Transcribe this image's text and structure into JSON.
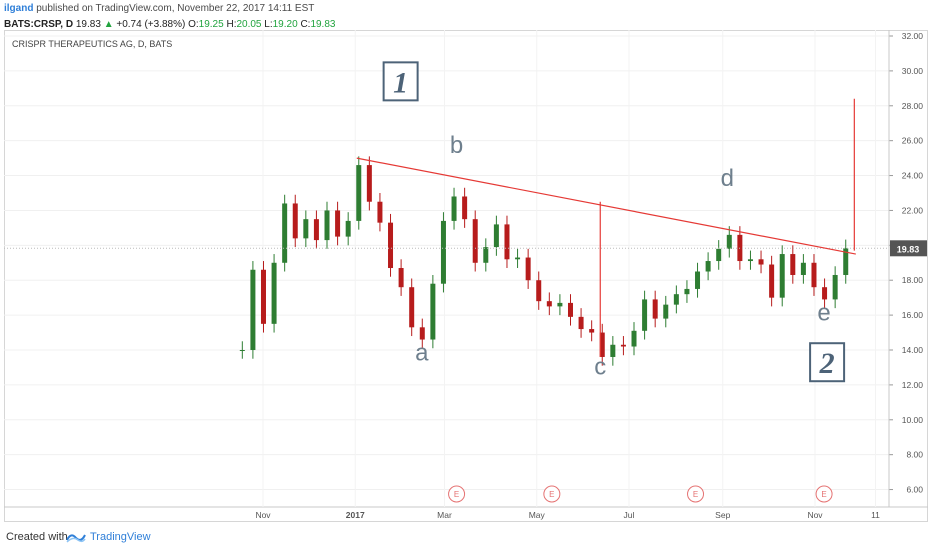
{
  "header": {
    "author": "ilgand",
    "published": "published on TradingView.com, November 22, 2017 14:11 EST",
    "symbol": "BATS:CRSP, D",
    "last": "19.83",
    "change": "+0.74 (+3.88%)",
    "open_label": "O:",
    "open": "19.25",
    "high_label": "H:",
    "high": "20.05",
    "low_label": "L:",
    "low": "19.20",
    "close_label": "C:",
    "close": "19.83"
  },
  "footer": {
    "created": "Created with",
    "brand": "TradingView"
  },
  "colors": {
    "up": "#2e7d32",
    "down": "#b71c1c",
    "trendline": "#e53935",
    "label": "#6e7f8d",
    "box": "#4d6378",
    "price_tag": "#555555",
    "earnings": "#e57373"
  },
  "chart_data": {
    "type": "candlestick",
    "title": "CRISPR THERAPEUTICS AG, D, BATS",
    "ylim": [
      5,
      32
    ],
    "y_ticks": [
      "32.00",
      "30.00",
      "28.00",
      "26.00",
      "24.00",
      "22.00",
      "20.00",
      "18.00",
      "16.00",
      "14.00",
      "12.00",
      "10.00",
      "8.00",
      "6.00"
    ],
    "x_ticks": [
      "Nov",
      "2017",
      "Mar",
      "May",
      "Jul",
      "Sep",
      "Nov",
      "11"
    ],
    "last_price": "19.83",
    "series": [
      {
        "period": "2016-10-17",
        "close": 14.0
      },
      {
        "period": "2016-10-24",
        "close": 18.6
      },
      {
        "period": "2016-10-31",
        "close": 15.5
      },
      {
        "period": "2016-11-07",
        "close": 19.0
      },
      {
        "period": "2016-11-14",
        "close": 22.4
      },
      {
        "period": "2016-11-21",
        "close": 20.4
      },
      {
        "period": "2016-11-28",
        "close": 21.5
      },
      {
        "period": "2016-12-05",
        "close": 20.3
      },
      {
        "period": "2016-12-12",
        "close": 22.0
      },
      {
        "period": "2016-12-19",
        "close": 20.5
      },
      {
        "period": "2016-12-26",
        "close": 21.4
      },
      {
        "period": "2017-01-02",
        "close": 24.6
      },
      {
        "period": "2017-01-09",
        "close": 22.5
      },
      {
        "period": "2017-01-16",
        "close": 21.3
      },
      {
        "period": "2017-01-23",
        "close": 18.7
      },
      {
        "period": "2017-01-30",
        "close": 17.6
      },
      {
        "period": "2017-02-06",
        "close": 15.3
      },
      {
        "period": "2017-02-13",
        "close": 14.6
      },
      {
        "period": "2017-02-20",
        "close": 17.8
      },
      {
        "period": "2017-02-27",
        "close": 21.4
      },
      {
        "period": "2017-03-06",
        "close": 22.8
      },
      {
        "period": "2017-03-13",
        "close": 21.5
      },
      {
        "period": "2017-03-20",
        "close": 19.0
      },
      {
        "period": "2017-03-27",
        "close": 19.9
      },
      {
        "period": "2017-04-03",
        "close": 21.2
      },
      {
        "period": "2017-04-10",
        "close": 19.2
      },
      {
        "period": "2017-04-17",
        "close": 19.3
      },
      {
        "period": "2017-04-24",
        "close": 18.0
      },
      {
        "period": "2017-05-01",
        "close": 16.8
      },
      {
        "period": "2017-05-08",
        "close": 16.5
      },
      {
        "period": "2017-05-15",
        "close": 16.7
      },
      {
        "period": "2017-05-22",
        "close": 15.9
      },
      {
        "period": "2017-05-29",
        "close": 15.2
      },
      {
        "period": "2017-06-05",
        "close": 15.0
      },
      {
        "period": "2017-06-12",
        "close": 13.6
      },
      {
        "period": "2017-06-19",
        "close": 14.3
      },
      {
        "period": "2017-06-26",
        "close": 14.2
      },
      {
        "period": "2017-07-03",
        "close": 15.1
      },
      {
        "period": "2017-07-10",
        "close": 16.9
      },
      {
        "period": "2017-07-17",
        "close": 15.8
      },
      {
        "period": "2017-07-24",
        "close": 16.6
      },
      {
        "period": "2017-07-31",
        "close": 17.2
      },
      {
        "period": "2017-08-07",
        "close": 17.5
      },
      {
        "period": "2017-08-14",
        "close": 18.5
      },
      {
        "period": "2017-08-21",
        "close": 19.1
      },
      {
        "period": "2017-08-28",
        "close": 19.8
      },
      {
        "period": "2017-09-04",
        "close": 20.6
      },
      {
        "period": "2017-09-11",
        "close": 19.1
      },
      {
        "period": "2017-09-18",
        "close": 19.2
      },
      {
        "period": "2017-09-25",
        "close": 18.9
      },
      {
        "period": "2017-10-02",
        "close": 17.0
      },
      {
        "period": "2017-10-09",
        "close": 19.5
      },
      {
        "period": "2017-10-16",
        "close": 18.3
      },
      {
        "period": "2017-10-23",
        "close": 19.0
      },
      {
        "period": "2017-10-30",
        "close": 17.6
      },
      {
        "period": "2017-11-06",
        "close": 16.9
      },
      {
        "period": "2017-11-13",
        "close": 18.3
      },
      {
        "period": "2017-11-20",
        "close": 19.83
      }
    ],
    "trendline": {
      "from": {
        "date": "2017-01-02",
        "price": 25.0
      },
      "to": {
        "date": "2017-11-28",
        "price": 19.5
      }
    },
    "measure_lines": [
      {
        "date": "2017-06-12",
        "from": 13.6,
        "to": 22.5
      },
      {
        "date": "2017-11-27",
        "from": 19.7,
        "to": 28.4
      }
    ],
    "wave_labels": [
      {
        "text": "a",
        "date": "2017-02-14",
        "price": 13.4
      },
      {
        "text": "b",
        "date": "2017-03-09",
        "price": 25.3
      },
      {
        "text": "c",
        "date": "2017-06-12",
        "price": 12.6
      },
      {
        "text": "d",
        "date": "2017-09-04",
        "price": 23.4
      },
      {
        "text": "e",
        "date": "2017-11-07",
        "price": 15.7
      }
    ],
    "boxed_labels": [
      {
        "text": "1",
        "date": "2017-01-31",
        "price": 29.4
      },
      {
        "text": "2",
        "date": "2017-11-09",
        "price": 13.3
      }
    ],
    "earnings_markers": [
      {
        "text": "E",
        "date": "2017-03-09"
      },
      {
        "text": "E",
        "date": "2017-05-11"
      },
      {
        "text": "E",
        "date": "2017-08-14"
      },
      {
        "text": "E",
        "date": "2017-11-07"
      }
    ]
  }
}
